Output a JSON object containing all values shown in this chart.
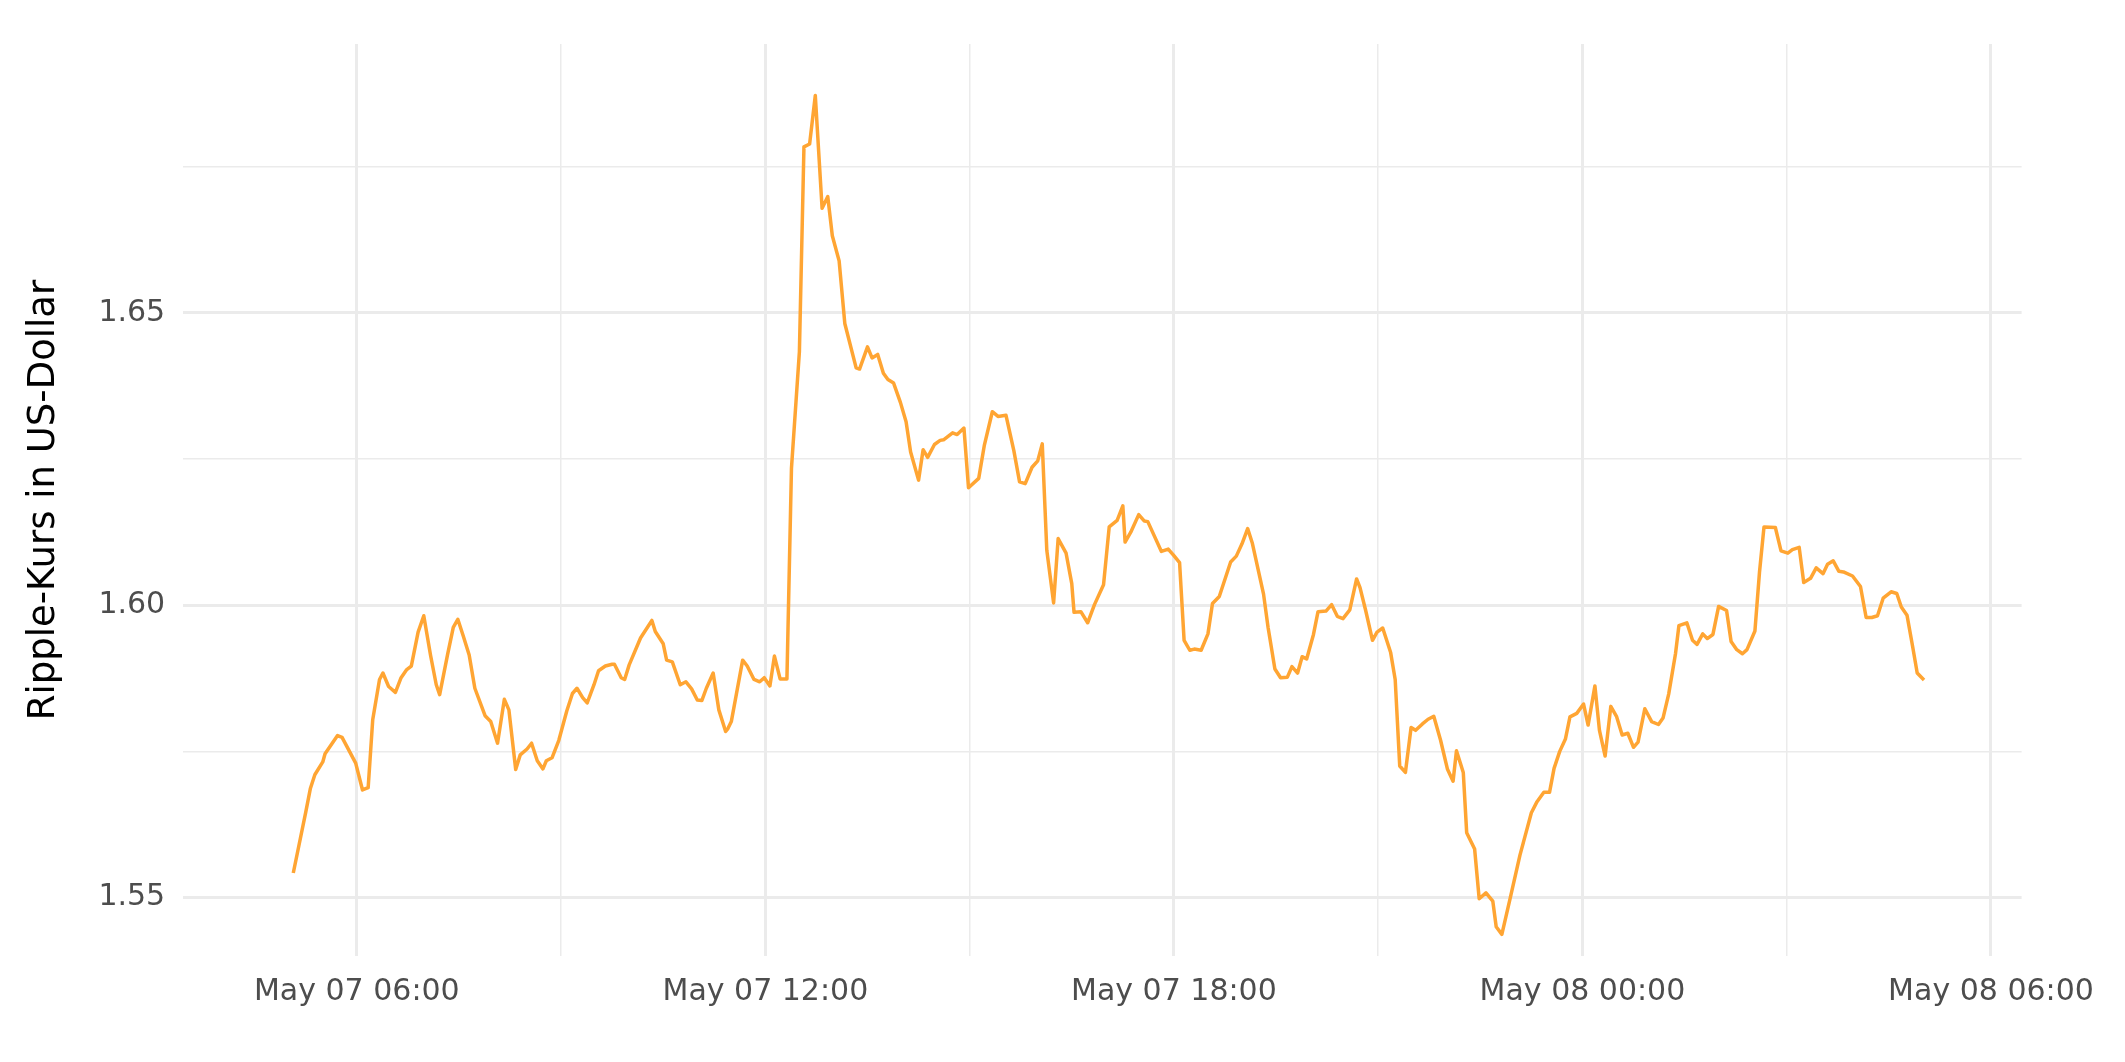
{
  "chart_data": {
    "type": "line",
    "ylabel": "Ripple-Kurs in US-Dollar",
    "color": "#ffa533",
    "grid": true,
    "xlim": [
      "--05-07T03:27",
      "--05-08T06:27"
    ],
    "ylim": [
      1.54,
      1.696
    ],
    "xticks": [
      {
        "value": "--05-07T06:00",
        "label": "May 07 06:00"
      },
      {
        "value": "--05-07T09:00",
        "label": null
      },
      {
        "value": "--05-07T12:00",
        "label": "May 07 12:00"
      },
      {
        "value": "--05-07T15:00",
        "label": null
      },
      {
        "value": "--05-07T18:00",
        "label": "May 07 18:00"
      },
      {
        "value": "--05-07T21:00",
        "label": null
      },
      {
        "value": "--05-08T00:00",
        "label": "May 08 00:00"
      },
      {
        "value": "--05-08T03:00",
        "label": null
      },
      {
        "value": "--05-08T06:00",
        "label": "May 08 06:00"
      }
    ],
    "yticks": [
      1.55,
      {
        "value": 1.575,
        "label": null
      },
      "1.60",
      {
        "value": 1.625,
        "label": null
      },
      1.65,
      {
        "value": 1.675,
        "label": null
      }
    ],
    "x": [
      "--05-07T05:04",
      "--05-07T05:15",
      "--05-07T05:19",
      "--05-07T05:23",
      "--05-07T05:30",
      "--05-07T05:32",
      "--05-07T05:43",
      "--05-07T05:47",
      "--05-07T05:59",
      "--05-07T06:05",
      "--05-07T06:10",
      "--05-07T06:14",
      "--05-07T06:20",
      "--05-07T06:23",
      "--05-07T06:28",
      "--05-07T06:34",
      "--05-07T06:39",
      "--05-07T06:44",
      "--05-07T06:48",
      "--05-07T06:54",
      "--05-07T06:59",
      "--05-07T07:05",
      "--05-07T07:10",
      "--05-07T07:13",
      "--05-07T07:20",
      "--05-07T07:25",
      "--05-07T07:29",
      "--05-07T07:34",
      "--05-07T07:39",
      "--05-07T07:44",
      "--05-07T07:53",
      "--05-07T07:58",
      "--05-07T08:04",
      "--05-07T08:10",
      "--05-07T08:14",
      "--05-07T08:20",
      "--05-07T08:24",
      "--05-07T08:30",
      "--05-07T08:34",
      "--05-07T08:39",
      "--05-07T08:44",
      "--05-07T08:47",
      "--05-07T08:52",
      "--05-07T08:58",
      "--05-07T09:05",
      "--05-07T09:10",
      "--05-07T09:14",
      "--05-07T09:19",
      "--05-07T09:23",
      "--05-07T09:29",
      "--05-07T09:33",
      "--05-07T09:39",
      "--05-07T09:45",
      "--05-07T09:47",
      "--05-07T09:53",
      "--05-07T09:56",
      "--05-07T10:00",
      "--05-07T10:10",
      "--05-07T10:20",
      "--05-07T10:23",
      "--05-07T10:30",
      "--05-07T10:33",
      "--05-07T10:38",
      "--05-07T10:45",
      "--05-07T10:50",
      "--05-07T10:55",
      "--05-07T11:00",
      "--05-07T11:04",
      "--05-07T11:08",
      "--05-07T11:14",
      "--05-07T11:19",
      "--05-07T11:25",
      "--05-07T11:27",
      "--05-07T11:30",
      "--05-07T11:40",
      "--05-07T11:44",
      "--05-07T11:50",
      "--05-07T11:55",
      "--05-07T11:59",
      "--05-07T12:04",
      "--05-07T12:08",
      "--05-07T12:13",
      "--05-07T12:19",
      "--05-07T12:23",
      "--05-07T12:30",
      "--05-07T12:34",
      "--05-07T12:39",
      "--05-07T12:44",
      "--05-07T12:50",
      "--05-07T12:55",
      "--05-07T12:59",
      "--05-07T13:05",
      "--05-07T13:10",
      "--05-07T13:20",
      "--05-07T13:23",
      "--05-07T13:30",
      "--05-07T13:34",
      "--05-07T13:39",
      "--05-07T13:44",
      "--05-07T13:48",
      "--05-07T13:53",
      "--05-07T13:59",
      "--05-07T14:04",
      "--05-07T14:08",
      "--05-07T14:15",
      "--05-07T14:19",
      "--05-07T14:23",
      "--05-07T14:29",
      "--05-07T14:34",
      "--05-07T14:37",
      "--05-07T14:45",
      "--05-07T14:49",
      "--05-07T14:55",
      "--05-07T14:59",
      "--05-07T15:08",
      "--05-07T15:13",
      "--05-07T15:20",
      "--05-07T15:25",
      "--05-07T15:32",
      "--05-07T15:39",
      "--05-07T15:44",
      "--05-07T15:49",
      "--05-07T15:55",
      "--05-07T16:00",
      "--05-07T16:04",
      "--05-07T16:08",
      "--05-07T16:14",
      "--05-07T16:18",
      "--05-07T16:25",
      "--05-07T16:30",
      "--05-07T16:32",
      "--05-07T16:38",
      "--05-07T16:44",
      "--05-07T16:50",
      "--05-07T16:58",
      "--05-07T17:03",
      "--05-07T17:10",
      "--05-07T17:15",
      "--05-07T17:17",
      "--05-07T17:22",
      "--05-07T17:29",
      "--05-07T17:34",
      "--05-07T17:37",
      "--05-07T17:49",
      "--05-07T17:55",
      "--05-07T18:00",
      "--05-07T18:05",
      "--05-07T18:09",
      "--05-07T18:14",
      "--05-07T18:18",
      "--05-07T18:24",
      "--05-07T18:30",
      "--05-07T18:34",
      "--05-07T18:40",
      "--05-07T18:50",
      "--05-07T18:55",
      "--05-07T19:00",
      "--05-07T19:05",
      "--05-07T19:09",
      "--05-07T19:19",
      "--05-07T19:23",
      "--05-07T19:29",
      "--05-07T19:34",
      "--05-07T19:40",
      "--05-07T19:44",
      "--05-07T19:49",
      "--05-07T19:53",
      "--05-07T19:57",
      "--05-07T20:03",
      "--05-07T20:07",
      "--05-07T20:14",
      "--05-07T20:19",
      "--05-07T20:24",
      "--05-07T20:29",
      "--05-07T20:35",
      "--05-07T20:41",
      "--05-07T20:44",
      "--05-07T20:49",
      "--05-07T20:55",
      "--05-07T20:59",
      "--05-07T21:04",
      "--05-07T21:11",
      "--05-07T21:15",
      "--05-07T21:19",
      "--05-07T21:24",
      "--05-07T21:29",
      "--05-07T21:33",
      "--05-07T21:39",
      "--05-07T21:44",
      "--05-07T21:49",
      "--05-07T21:55",
      "--05-07T22:01",
      "--05-07T22:06",
      "--05-07T22:09",
      "--05-07T22:15",
      "--05-07T22:18",
      "--05-07T22:25",
      "--05-07T22:29",
      "--05-07T22:35",
      "--05-07T22:41",
      "--05-07T22:44",
      "--05-07T22:49",
      "--05-07T22:56",
      "--05-07T23:05",
      "--05-07T23:15",
      "--05-07T23:20",
      "--05-07T23:26",
      "--05-07T23:31",
      "--05-07T23:35",
      "--05-07T23:40",
      "--05-07T23:45",
      "--05-07T23:49",
      "--05-07T23:55",
      "--05-08T00:01",
      "--05-08T00:05",
      "--05-08T00:11",
      "--05-08T00:15",
      "--05-08T00:20",
      "--05-08T00:25",
      "--05-08T00:30",
      "--05-08T00:35",
      "--05-08T00:40",
      "--05-08T00:45",
      "--05-08T00:49",
      "--05-08T00:55",
      "--05-08T01:01",
      "--05-08T01:07",
      "--05-08T01:11",
      "--05-08T01:16",
      "--05-08T01:22",
      "--05-08T01:25",
      "--05-08T01:32",
      "--05-08T01:37",
      "--05-08T01:41",
      "--05-08T01:46",
      "--05-08T01:50",
      "--05-08T01:55",
      "--05-08T02:00",
      "--05-08T02:07",
      "--05-08T02:11",
      "--05-08T02:16",
      "--05-08T02:21",
      "--05-08T02:25",
      "--05-08T02:32",
      "--05-08T02:36",
      "--05-08T02:40",
      "--05-08T02:50",
      "--05-08T02:55",
      "--05-08T03:01",
      "--05-08T03:05",
      "--05-08T03:11",
      "--05-08T03:15",
      "--05-08T03:21",
      "--05-08T03:26",
      "--05-08T03:32",
      "--05-08T03:36",
      "--05-08T03:41",
      "--05-08T03:46",
      "--05-08T03:50",
      "--05-08T03:58",
      "--05-08T04:05",
      "--05-08T04:10",
      "--05-08T04:15",
      "--05-08T04:20",
      "--05-08T04:25",
      "--05-08T04:32",
      "--05-08T04:37",
      "--05-08T04:41",
      "--05-08T04:46",
      "--05-08T04:51",
      "--05-08T04:55",
      "--05-08T05:01"
    ],
    "values": [
      1.5542,
      1.5646,
      1.5686,
      1.571,
      1.5732,
      1.5746,
      1.5777,
      1.5774,
      1.573,
      1.5684,
      1.5688,
      1.5804,
      1.5873,
      1.5884,
      1.5861,
      1.5851,
      1.5876,
      1.589,
      1.5896,
      1.5954,
      1.5982,
      1.5914,
      1.5864,
      1.5847,
      1.5916,
      1.5962,
      1.5976,
      1.5946,
      1.5915,
      1.5858,
      1.5811,
      1.5801,
      1.5764,
      1.5839,
      1.5821,
      1.5719,
      1.5744,
      1.5754,
      1.5764,
      1.5734,
      1.572,
      1.5734,
      1.5739,
      1.5769,
      1.5819,
      1.5849,
      1.5858,
      1.5842,
      1.5833,
      1.5864,
      1.5888,
      1.5896,
      1.5899,
      1.5899,
      1.5876,
      1.5873,
      1.5898,
      1.5944,
      1.5974,
      1.5955,
      1.5934,
      1.5906,
      1.5903,
      1.5864,
      1.5869,
      1.5857,
      1.5838,
      1.5837,
      1.5858,
      1.5884,
      1.5821,
      1.5784,
      1.5789,
      1.5801,
      1.5906,
      1.5896,
      1.5873,
      1.5869,
      1.5876,
      1.5862,
      1.5913,
      1.5874,
      1.5874,
      1.6234,
      1.6434,
      1.6784,
      1.6789,
      1.6872,
      1.6679,
      1.6699,
      1.6632,
      1.6589,
      1.6482,
      1.6406,
      1.6404,
      1.6442,
      1.6423,
      1.6429,
      1.6397,
      1.6386,
      1.638,
      1.6347,
      1.6314,
      1.6262,
      1.6214,
      1.6266,
      1.6253,
      1.6275,
      1.6282,
      1.6283,
      1.6295,
      1.6292,
      1.6303,
      1.6201,
      1.6217,
      1.6274,
      1.6331,
      1.6323,
      1.6325,
      1.6264,
      1.6211,
      1.6208,
      1.6236,
      1.6247,
      1.6276,
      1.6094,
      1.6004,
      1.6114,
      1.6089,
      1.6037,
      1.5988,
      1.5989,
      1.597,
      1.6001,
      1.6035,
      1.6134,
      1.6145,
      1.617,
      1.6108,
      1.6125,
      1.6155,
      1.6144,
      1.6143,
      1.6092,
      1.6096,
      1.6085,
      1.6073,
      1.594,
      1.5923,
      1.5925,
      1.5923,
      1.5951,
      1.6003,
      1.6015,
      1.6074,
      1.6084,
      1.6105,
      1.6131,
      1.6107,
      1.6019,
      1.5962,
      1.5891,
      1.5876,
      1.5877,
      1.5895,
      1.5884,
      1.5912,
      1.5908,
      1.595,
      1.5989,
      1.599,
      1.6001,
      1.5981,
      1.5977,
      1.5992,
      1.6045,
      1.603,
      1.5991,
      1.594,
      1.5954,
      1.5961,
      1.5919,
      1.5873,
      1.5725,
      1.5714,
      1.5791,
      1.5786,
      1.5797,
      1.5805,
      1.581,
      1.5769,
      1.572,
      1.5699,
      1.5751,
      1.5714,
      1.5611,
      1.5583,
      1.5498,
      1.5508,
      1.5494,
      1.545,
      1.5437,
      1.5496,
      1.5573,
      1.5645,
      1.5664,
      1.568,
      1.568,
      1.5721,
      1.575,
      1.5771,
      1.5809,
      1.5815,
      1.5831,
      1.5795,
      1.5862,
      1.5786,
      1.5742,
      1.5827,
      1.581,
      1.5778,
      1.5781,
      1.5757,
      1.5766,
      1.5823,
      1.5801,
      1.5796,
      1.5807,
      1.5848,
      1.5917,
      1.5965,
      1.597,
      1.594,
      1.5933,
      1.5951,
      1.5943,
      1.595,
      1.5998,
      1.5991,
      1.5938,
      1.5924,
      1.5917,
      1.5924,
      1.5956,
      1.6056,
      1.6134,
      1.6133,
      1.6093,
      1.6089,
      1.6095,
      1.6099,
      1.6039,
      1.6046,
      1.6064,
      1.6054,
      1.607,
      1.6076,
      1.6058,
      1.6057,
      1.605,
      1.6032,
      1.5979,
      1.5979,
      1.5982,
      1.6012,
      1.6023,
      1.602,
      1.5997,
      1.5983,
      1.5929,
      1.5884,
      1.5872
    ]
  }
}
